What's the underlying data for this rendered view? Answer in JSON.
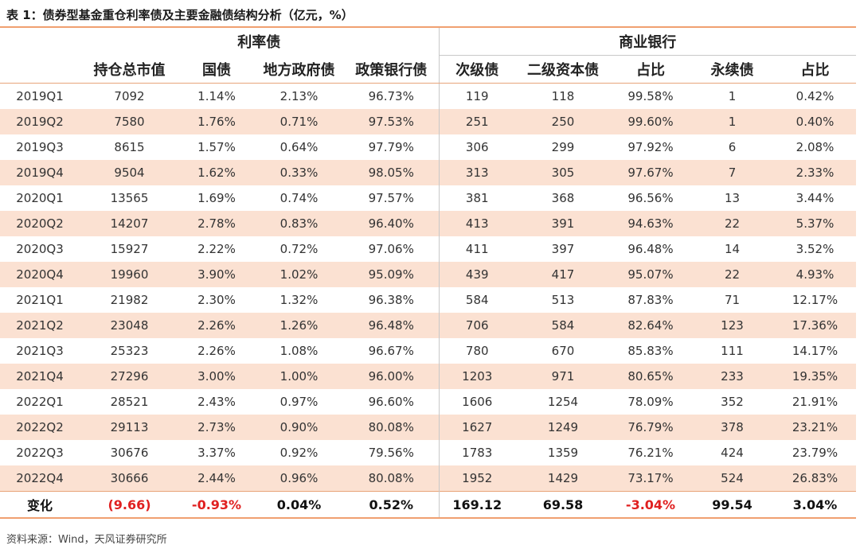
{
  "title": "表 1：债券型基金重仓利率债及主要金融债结构分析（亿元，%）",
  "groups": {
    "rate_bonds": "利率债",
    "commercial_banks": "商业银行"
  },
  "columns": [
    "持仓总市值",
    "国债",
    "地方政府债",
    "政策银行债",
    "次级债",
    "二级资本债",
    "占比",
    "永续债",
    "占比"
  ],
  "rows": [
    [
      "2019Q1",
      "7092",
      "1.14%",
      "2.13%",
      "96.73%",
      "119",
      "118",
      "99.58%",
      "1",
      "0.42%"
    ],
    [
      "2019Q2",
      "7580",
      "1.76%",
      "0.71%",
      "97.53%",
      "251",
      "250",
      "99.60%",
      "1",
      "0.40%"
    ],
    [
      "2019Q3",
      "8615",
      "1.57%",
      "0.64%",
      "97.79%",
      "306",
      "299",
      "97.92%",
      "6",
      "2.08%"
    ],
    [
      "2019Q4",
      "9504",
      "1.62%",
      "0.33%",
      "98.05%",
      "313",
      "305",
      "97.67%",
      "7",
      "2.33%"
    ],
    [
      "2020Q1",
      "13565",
      "1.69%",
      "0.74%",
      "97.57%",
      "381",
      "368",
      "96.56%",
      "13",
      "3.44%"
    ],
    [
      "2020Q2",
      "14207",
      "2.78%",
      "0.83%",
      "96.40%",
      "413",
      "391",
      "94.63%",
      "22",
      "5.37%"
    ],
    [
      "2020Q3",
      "15927",
      "2.22%",
      "0.72%",
      "97.06%",
      "411",
      "397",
      "96.48%",
      "14",
      "3.52%"
    ],
    [
      "2020Q4",
      "19960",
      "3.90%",
      "1.02%",
      "95.09%",
      "439",
      "417",
      "95.07%",
      "22",
      "4.93%"
    ],
    [
      "2021Q1",
      "21982",
      "2.30%",
      "1.32%",
      "96.38%",
      "584",
      "513",
      "87.83%",
      "71",
      "12.17%"
    ],
    [
      "2021Q2",
      "23048",
      "2.26%",
      "1.26%",
      "96.48%",
      "706",
      "584",
      "82.64%",
      "123",
      "17.36%"
    ],
    [
      "2021Q3",
      "25323",
      "2.26%",
      "1.08%",
      "96.67%",
      "780",
      "670",
      "85.83%",
      "111",
      "14.17%"
    ],
    [
      "2021Q4",
      "27296",
      "3.00%",
      "1.00%",
      "96.00%",
      "1203",
      "971",
      "80.65%",
      "233",
      "19.35%"
    ],
    [
      "2022Q1",
      "28521",
      "2.43%",
      "0.97%",
      "96.60%",
      "1606",
      "1254",
      "78.09%",
      "352",
      "21.91%"
    ],
    [
      "2022Q2",
      "29113",
      "2.73%",
      "0.90%",
      "80.08%",
      "1627",
      "1249",
      "76.79%",
      "378",
      "23.21%"
    ],
    [
      "2022Q3",
      "30676",
      "3.37%",
      "0.92%",
      "79.56%",
      "1783",
      "1359",
      "76.21%",
      "424",
      "23.79%"
    ],
    [
      "2022Q4",
      "30666",
      "2.44%",
      "0.96%",
      "80.08%",
      "1952",
      "1429",
      "73.17%",
      "524",
      "26.83%"
    ]
  ],
  "change_row": [
    "变化",
    "(9.66)",
    "-0.93%",
    "0.04%",
    "0.52%",
    "169.12",
    "69.58",
    "-3.04%",
    "99.54",
    "3.04%"
  ],
  "negative_color": "#e02020",
  "shade_color": "#fbe1d2",
  "accent_color": "#f0a070",
  "source": "资料来源：Wind，天风证券研究所"
}
